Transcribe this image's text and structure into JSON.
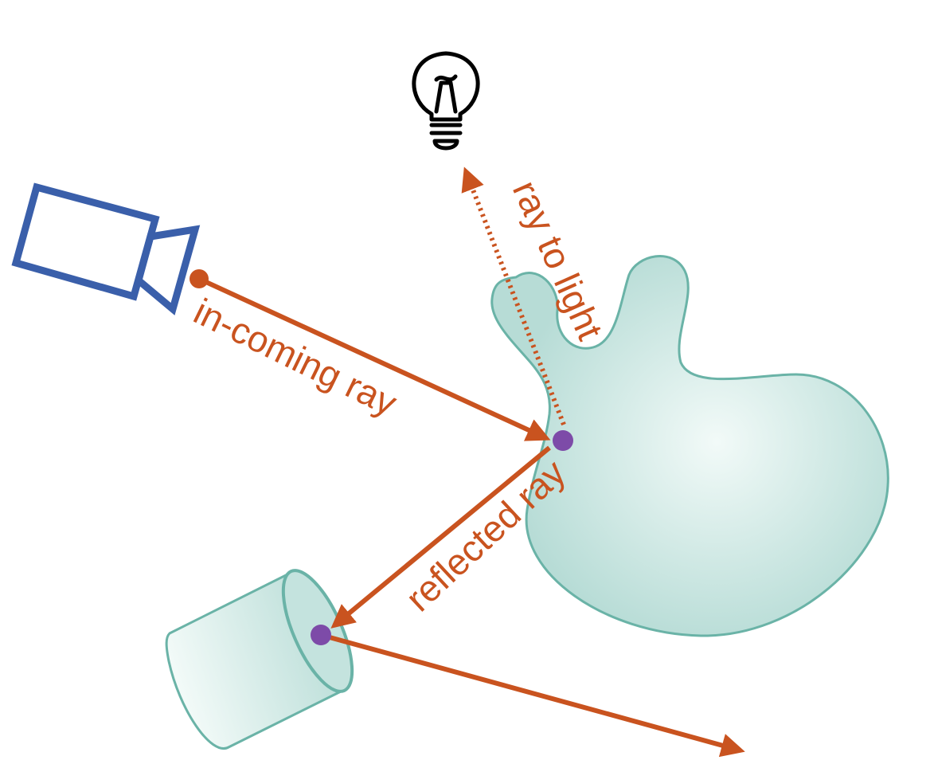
{
  "colors": {
    "ray": "#c9531f",
    "camera": "#3a5faa",
    "object_fill": "#b7dcd6",
    "object_fill_light": "#f2faf8",
    "object_stroke": "#6ab3a7",
    "hit_point": "#7d4ba8",
    "bulb": "#000000"
  },
  "icons": {
    "light": "light-bulb-icon",
    "camera": "camera-icon"
  },
  "labels": {
    "incoming_ray": "in-coming ray",
    "ray_to_light": "ray to light",
    "reflected_ray": "reflected ray"
  }
}
